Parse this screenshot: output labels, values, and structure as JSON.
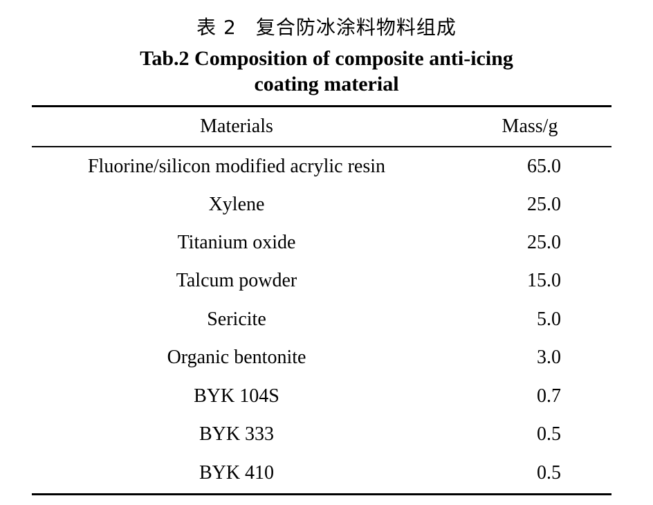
{
  "caption": {
    "cn_number": "表 2",
    "cn_title": "复合防冰涂料物料组成",
    "en_line1": "Tab.2 Composition of composite anti-icing",
    "en_line2": "coating material"
  },
  "table": {
    "headers": [
      "Materials",
      "Mass/g"
    ],
    "rows": [
      [
        "Fluorine/silicon modified acrylic resin",
        "65.0"
      ],
      [
        "Xylene",
        "25.0"
      ],
      [
        "Titanium oxide",
        "25.0"
      ],
      [
        "Talcum powder",
        "15.0"
      ],
      [
        "Sericite",
        "5.0"
      ],
      [
        "Organic bentonite",
        "3.0"
      ],
      [
        "BYK 104S",
        "0.7"
      ],
      [
        "BYK 333",
        "0.5"
      ],
      [
        "BYK 410",
        "0.5"
      ]
    ]
  }
}
